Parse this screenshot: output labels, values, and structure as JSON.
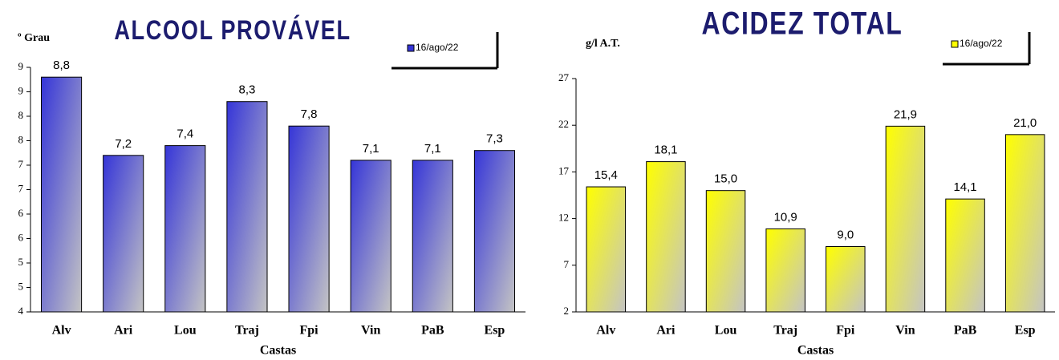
{
  "chart_data": [
    {
      "type": "bar",
      "title": "ALCOOL PROVÁVEL",
      "y_label": "º Grau",
      "x_label": "Castas",
      "categories": [
        "Alv",
        "Ari",
        "Lou",
        "Traj",
        "Fpi",
        "Vin",
        "PaB",
        "Esp"
      ],
      "series": [
        {
          "name": "16/ago/22",
          "color": "#3535d8",
          "values": [
            8.8,
            7.2,
            7.4,
            8.3,
            7.8,
            7.1,
            7.1,
            7.3
          ],
          "value_labels": [
            "8,8",
            "7,2",
            "7,4",
            "8,3",
            "7,8",
            "7,1",
            "7,1",
            "7,3"
          ]
        }
      ],
      "ylim": [
        4,
        9
      ],
      "yticks": [
        4,
        {
          "value": 4.5,
          "label": "5"
        },
        5,
        {
          "value": 5.5,
          "label": "6"
        },
        6,
        {
          "value": 6.5,
          "label": "7"
        },
        7,
        {
          "value": 7.5,
          "label": "8"
        },
        8,
        {
          "value": 8.5,
          "label": "9"
        },
        9
      ]
    },
    {
      "type": "bar",
      "title": "ACIDEZ TOTAL",
      "y_label": "g/l A.T.",
      "x_label": "Castas",
      "categories": [
        "Alv",
        "Ari",
        "Lou",
        "Traj",
        "Fpi",
        "Vin",
        "PaB",
        "Esp"
      ],
      "series": [
        {
          "name": "16/ago/22",
          "color": "#ffff00",
          "values": [
            15.4,
            18.1,
            15.0,
            10.9,
            9.0,
            21.9,
            14.1,
            21.0
          ],
          "value_labels": [
            "15,4",
            "18,1",
            "15,0",
            "10,9",
            "9,0",
            "21,9",
            "14,1",
            "21,0"
          ]
        }
      ],
      "ylim": [
        2,
        27
      ],
      "yticks": [
        2,
        7,
        12,
        17,
        22,
        27
      ]
    }
  ]
}
